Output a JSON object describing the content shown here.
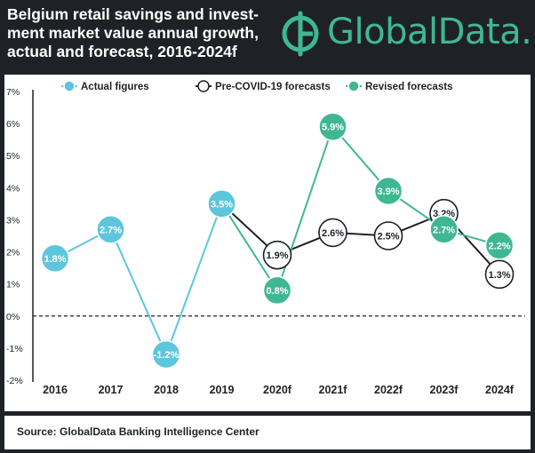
{
  "header": {
    "title": "Belgium retail savings and invest-ment market value annual growth, actual and forecast, 2016-2024f",
    "title_lines": [
      "Belgium retail savings and invest-",
      "ment market value annual growth,",
      "actual and forecast, 2016-2024f"
    ],
    "logo_text": "GlobalData."
  },
  "footer": {
    "source": "Source: GlobalData Banking Intelligence Center"
  },
  "colors": {
    "background": "#1e2226",
    "actual": "#5cc6dc",
    "revised": "#3fb892",
    "pre_covid": "#ffffff",
    "brand": "#3fb892"
  },
  "chart_data": {
    "type": "line",
    "categories": [
      "2016",
      "2017",
      "2018",
      "2019",
      "2020f",
      "2021f",
      "2022f",
      "2023f",
      "2024f"
    ],
    "ylim": [
      -2,
      7
    ],
    "yticks": [
      "-2%",
      "-1%",
      "0%",
      "1%",
      "2%",
      "3%",
      "4%",
      "5%",
      "6%",
      "7%"
    ],
    "legend_position": "top",
    "grid": false,
    "series": [
      {
        "name": "Actual figures",
        "color": "#5cc6dc",
        "values": [
          1.8,
          2.7,
          -1.2,
          3.5,
          null,
          null,
          null,
          null,
          null
        ],
        "labels": [
          "1.8%",
          "2.7%",
          "-1.2%",
          "3.5%",
          "",
          "",
          "",
          "",
          ""
        ]
      },
      {
        "name": "Pre-COVID-19 forecasts",
        "color": "#ffffff",
        "values": [
          null,
          null,
          null,
          3.5,
          1.9,
          2.6,
          2.5,
          3.2,
          1.3
        ],
        "labels": [
          "",
          "",
          "",
          "",
          "1.9%",
          "2.6%",
          "2.5%",
          "3.2%",
          "1.3%"
        ]
      },
      {
        "name": "Revised forecasts",
        "color": "#3fb892",
        "values": [
          null,
          null,
          null,
          3.5,
          0.8,
          5.9,
          3.9,
          2.7,
          2.2
        ],
        "labels": [
          "",
          "",
          "",
          "",
          "0.8%",
          "5.9%",
          "3.9%",
          "2.7%",
          "2.2%"
        ]
      }
    ]
  }
}
